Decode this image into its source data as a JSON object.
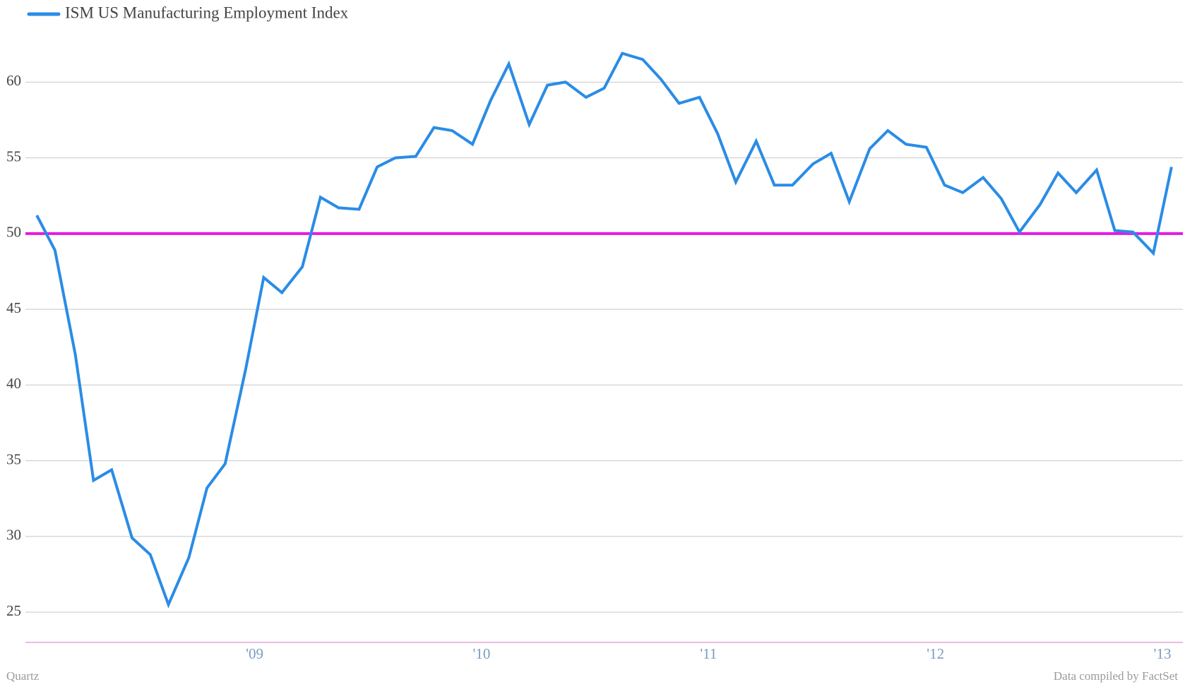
{
  "chart_data": {
    "type": "line",
    "legend_position": "top-left",
    "x": [
      2008.04,
      2008.12,
      2008.21,
      2008.29,
      2008.37,
      2008.46,
      2008.54,
      2008.62,
      2008.71,
      2008.79,
      2008.87,
      2008.96,
      2009.04,
      2009.12,
      2009.21,
      2009.29,
      2009.37,
      2009.46,
      2009.54,
      2009.62,
      2009.71,
      2009.79,
      2009.87,
      2009.96,
      2010.04,
      2010.12,
      2010.21,
      2010.29,
      2010.37,
      2010.46,
      2010.54,
      2010.62,
      2010.71,
      2010.79,
      2010.87,
      2010.96,
      2011.04,
      2011.12,
      2011.21,
      2011.29,
      2011.37,
      2011.46,
      2011.54,
      2011.62,
      2011.71,
      2011.79,
      2011.87,
      2011.96,
      2012.04,
      2012.12,
      2012.21,
      2012.29,
      2012.37,
      2012.46,
      2012.54,
      2012.62,
      2012.71,
      2012.79,
      2012.87,
      2012.96,
      2013.04
    ],
    "series": [
      {
        "name": "ISM US Manufacturing Employment Index",
        "color": "#2a8ce6",
        "values": [
          51.2,
          48.9,
          42.0,
          33.7,
          34.4,
          29.9,
          28.8,
          25.5,
          28.6,
          33.2,
          34.8,
          41.0,
          47.1,
          46.1,
          47.8,
          52.4,
          51.7,
          51.6,
          54.4,
          55.0,
          55.1,
          57.0,
          56.8,
          55.9,
          58.8,
          61.2,
          57.2,
          59.8,
          60.0,
          59.0,
          59.6,
          61.9,
          61.5,
          60.2,
          58.6,
          59.0,
          56.6,
          53.4,
          56.1,
          53.2,
          53.2,
          54.6,
          55.3,
          52.1,
          55.6,
          56.8,
          55.9,
          55.7,
          53.2,
          52.7,
          53.7,
          52.3,
          50.1,
          51.9,
          54.0,
          52.7,
          54.2,
          50.2,
          50.1,
          48.7,
          54.4
        ]
      }
    ],
    "reference_line": {
      "value": 50,
      "color": "#e619e0"
    },
    "xlim": [
      2007.99,
      2013.09
    ],
    "xticks": [
      {
        "value": 2009,
        "label": "'09"
      },
      {
        "value": 2010,
        "label": "'10"
      },
      {
        "value": 2011,
        "label": "'11"
      },
      {
        "value": 2012,
        "label": "'12"
      },
      {
        "value": 2013,
        "label": "'13"
      }
    ],
    "ylim": [
      23,
      63
    ],
    "yticks": [
      25,
      30,
      35,
      40,
      45,
      50,
      55,
      60
    ],
    "grid": true,
    "source_left": "Quartz",
    "source_right": "Data compiled by FactSet"
  }
}
